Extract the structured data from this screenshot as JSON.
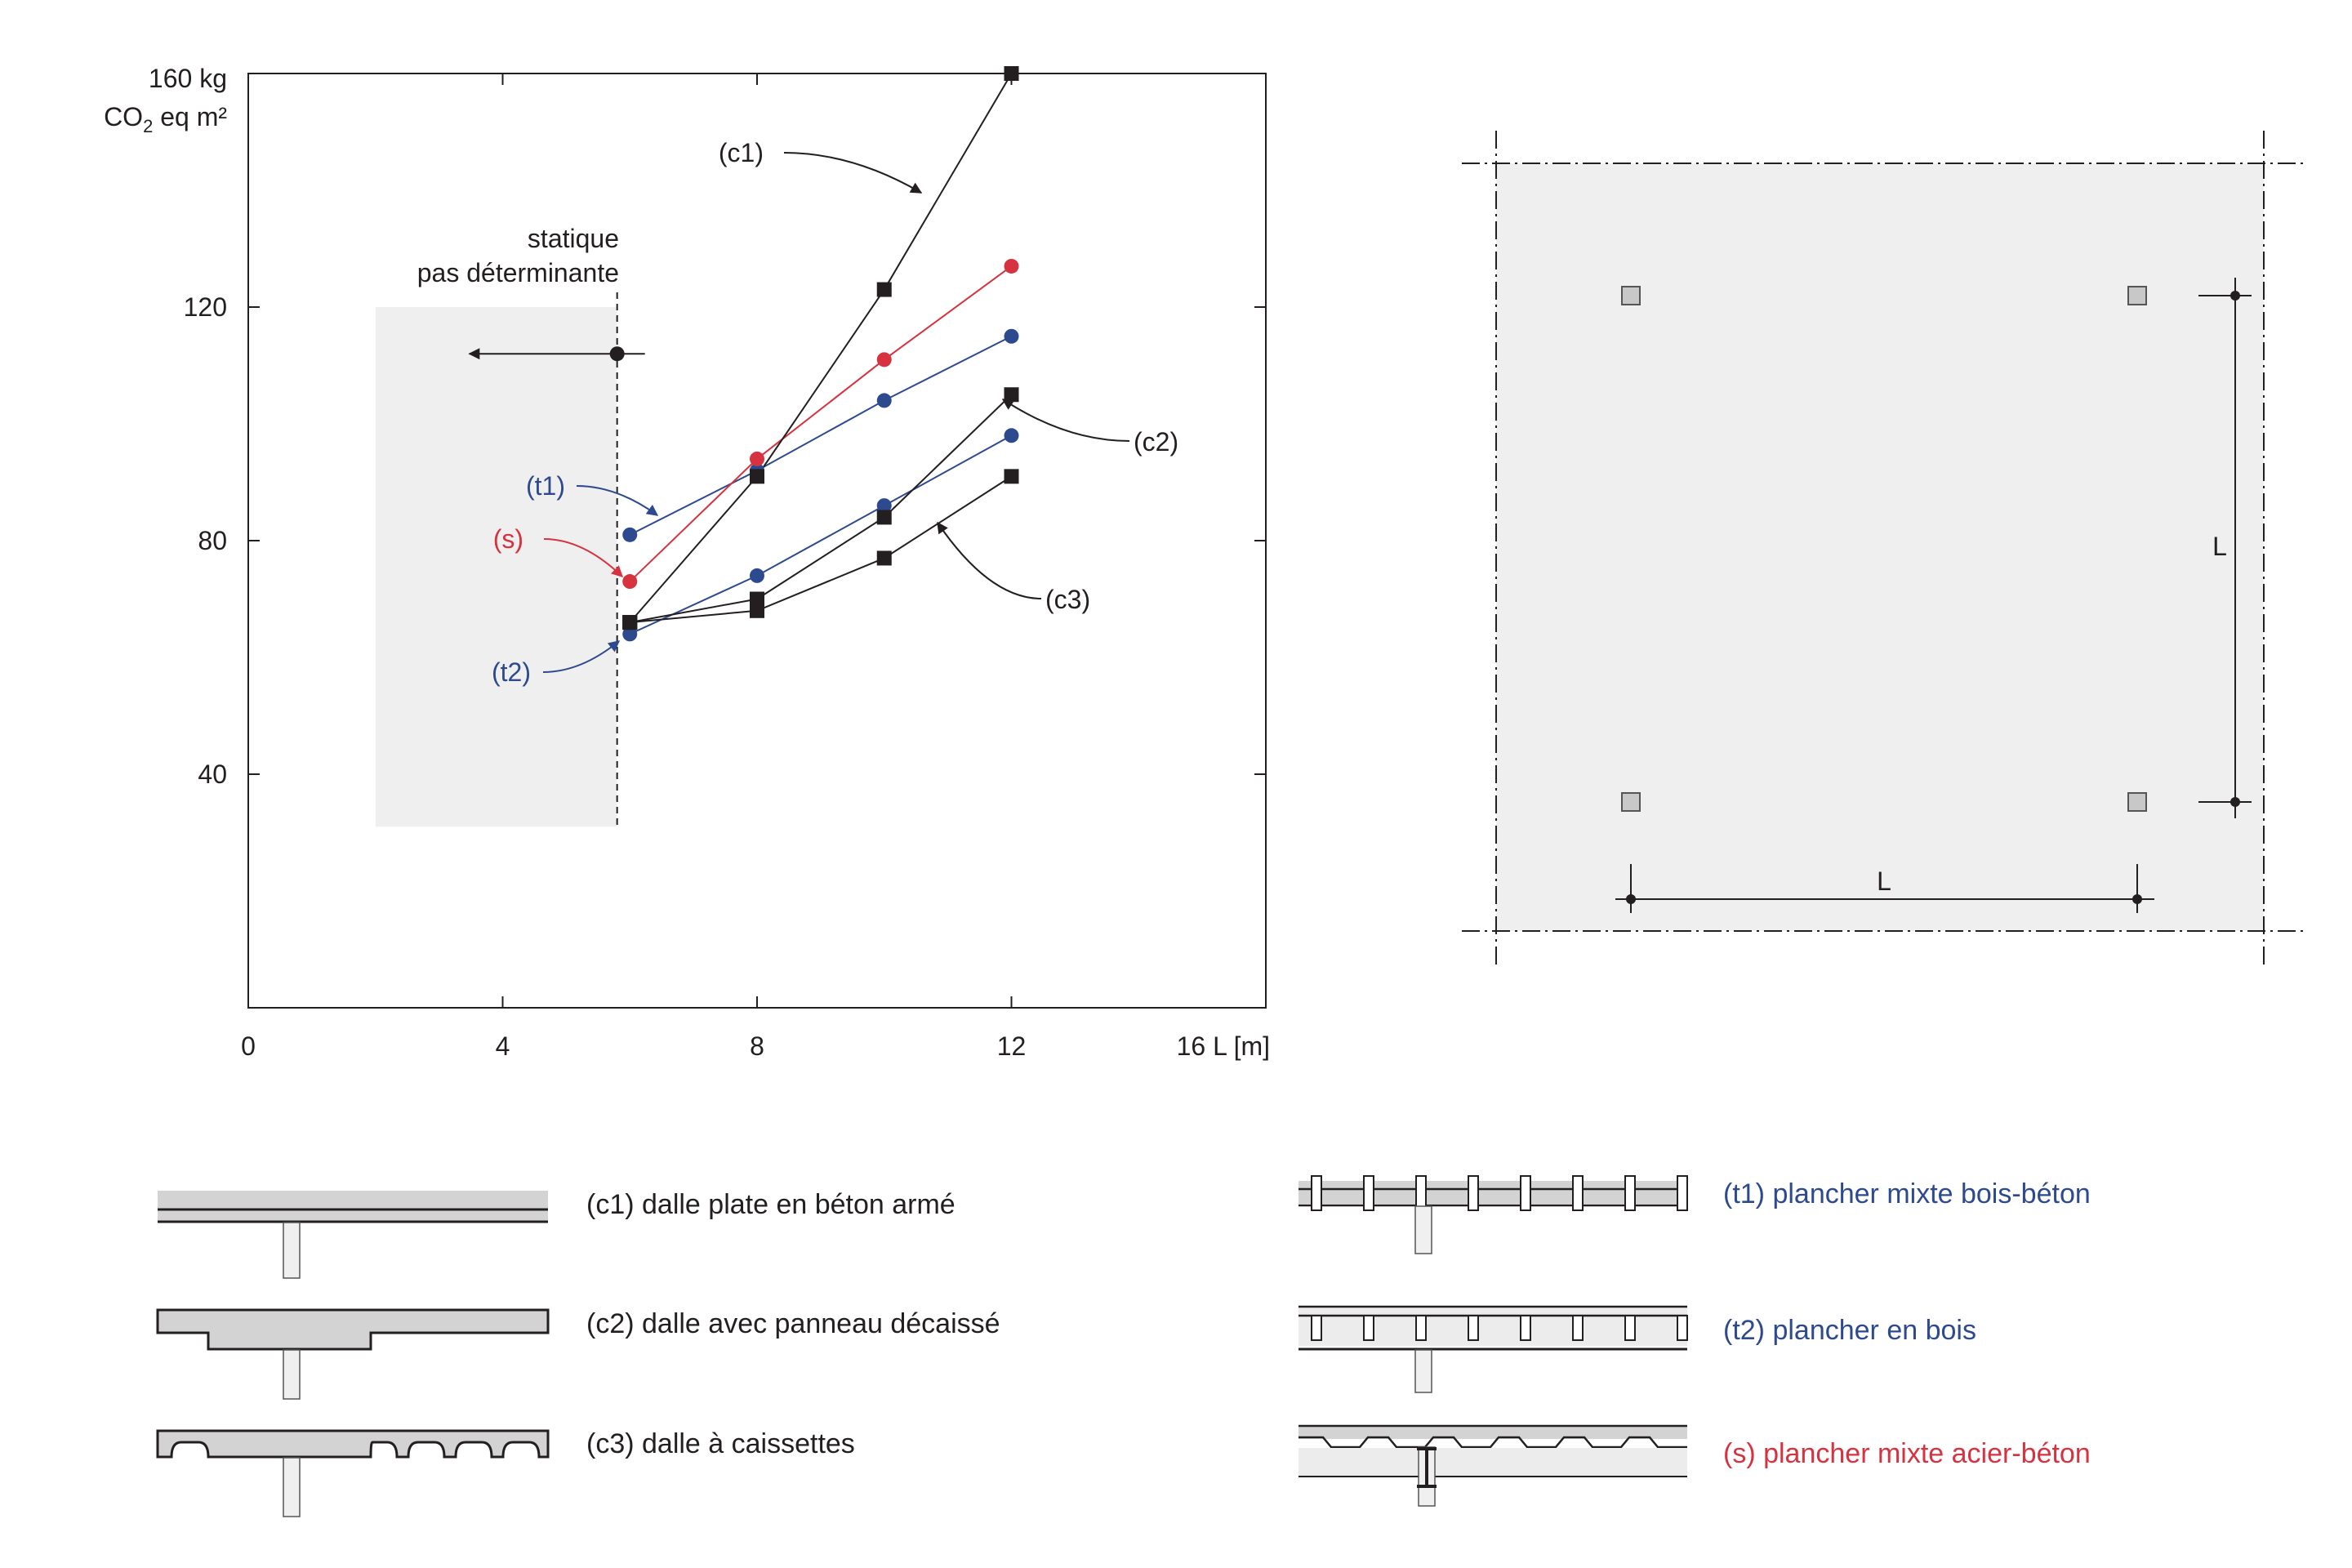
{
  "chart_data": {
    "type": "line",
    "x_axis": {
      "min": 0,
      "max": 16,
      "ticks": [
        "0",
        "4",
        "8",
        "12",
        "16"
      ],
      "unit_label": "L [m]"
    },
    "y_axis": {
      "min": 0,
      "max": 160,
      "ticks": [
        "40",
        "80",
        "120",
        "160"
      ],
      "unit_label_line1": "kg",
      "unit_label_line2_pre": "CO",
      "unit_label_line2_sub": "2",
      "unit_label_line2_post": " eq m²"
    },
    "grid": false,
    "shaded_region": {
      "x_from": 2,
      "x_to": 5.8,
      "y_from": 31,
      "y_to": 120
    },
    "threshold": {
      "x": 5.8,
      "y": 112,
      "label_line1": "statique",
      "label_line2": "pas déterminante"
    },
    "series": [
      {
        "name": "(c1)",
        "color": "#231f20",
        "marker": "square",
        "points": [
          [
            6,
            66
          ],
          [
            8,
            91
          ],
          [
            10,
            123
          ],
          [
            12,
            160
          ]
        ],
        "label_x": 7.6,
        "label_y": 146
      },
      {
        "name": "(c2)",
        "color": "#231f20",
        "marker": "square",
        "points": [
          [
            6,
            66
          ],
          [
            8,
            70
          ],
          [
            10,
            84
          ],
          [
            12,
            105
          ]
        ],
        "label_x": 14.3,
        "label_y": 96
      },
      {
        "name": "(c3)",
        "color": "#231f20",
        "marker": "square",
        "points": [
          [
            6,
            66
          ],
          [
            8,
            68
          ],
          [
            10,
            77
          ],
          [
            12,
            91
          ]
        ],
        "label_x": 13.3,
        "label_y": 69
      },
      {
        "name": "(t1)",
        "color": "#2e4a8f",
        "marker": "circle",
        "points": [
          [
            6,
            81
          ],
          [
            8,
            92
          ],
          [
            10,
            104
          ],
          [
            12,
            115
          ]
        ],
        "label_x": 4.7,
        "label_y": 87
      },
      {
        "name": "(t2)",
        "color": "#2e4a8f",
        "marker": "circle",
        "points": [
          [
            6,
            64
          ],
          [
            8,
            74
          ],
          [
            10,
            86
          ],
          [
            12,
            98
          ]
        ],
        "label_x": 4.4,
        "label_y": 56
      },
      {
        "name": "(s)",
        "color": "#d7323f",
        "marker": "circle",
        "points": [
          [
            6,
            73
          ],
          [
            8,
            94
          ],
          [
            10,
            111
          ],
          [
            12,
            127
          ]
        ],
        "label_x": 4.4,
        "label_y": 78
      }
    ]
  },
  "plan": {
    "span_label": "L"
  },
  "legend": {
    "c1": {
      "text": "(c1) dalle plate en béton armé",
      "color": "#231f20"
    },
    "c2": {
      "text": "(c2) dalle avec panneau décaissé",
      "color": "#231f20"
    },
    "c3": {
      "text": "(c3) dalle à caissettes",
      "color": "#231f20"
    },
    "t1": {
      "text": "(t1) plancher mixte bois-béton",
      "color": "#2e4a8f"
    },
    "t2": {
      "text": "(t2) plancher en bois",
      "color": "#2e4a8f"
    },
    "s": {
      "text": "(s) plancher mixte acier-béton",
      "color": "#d7323f"
    }
  }
}
